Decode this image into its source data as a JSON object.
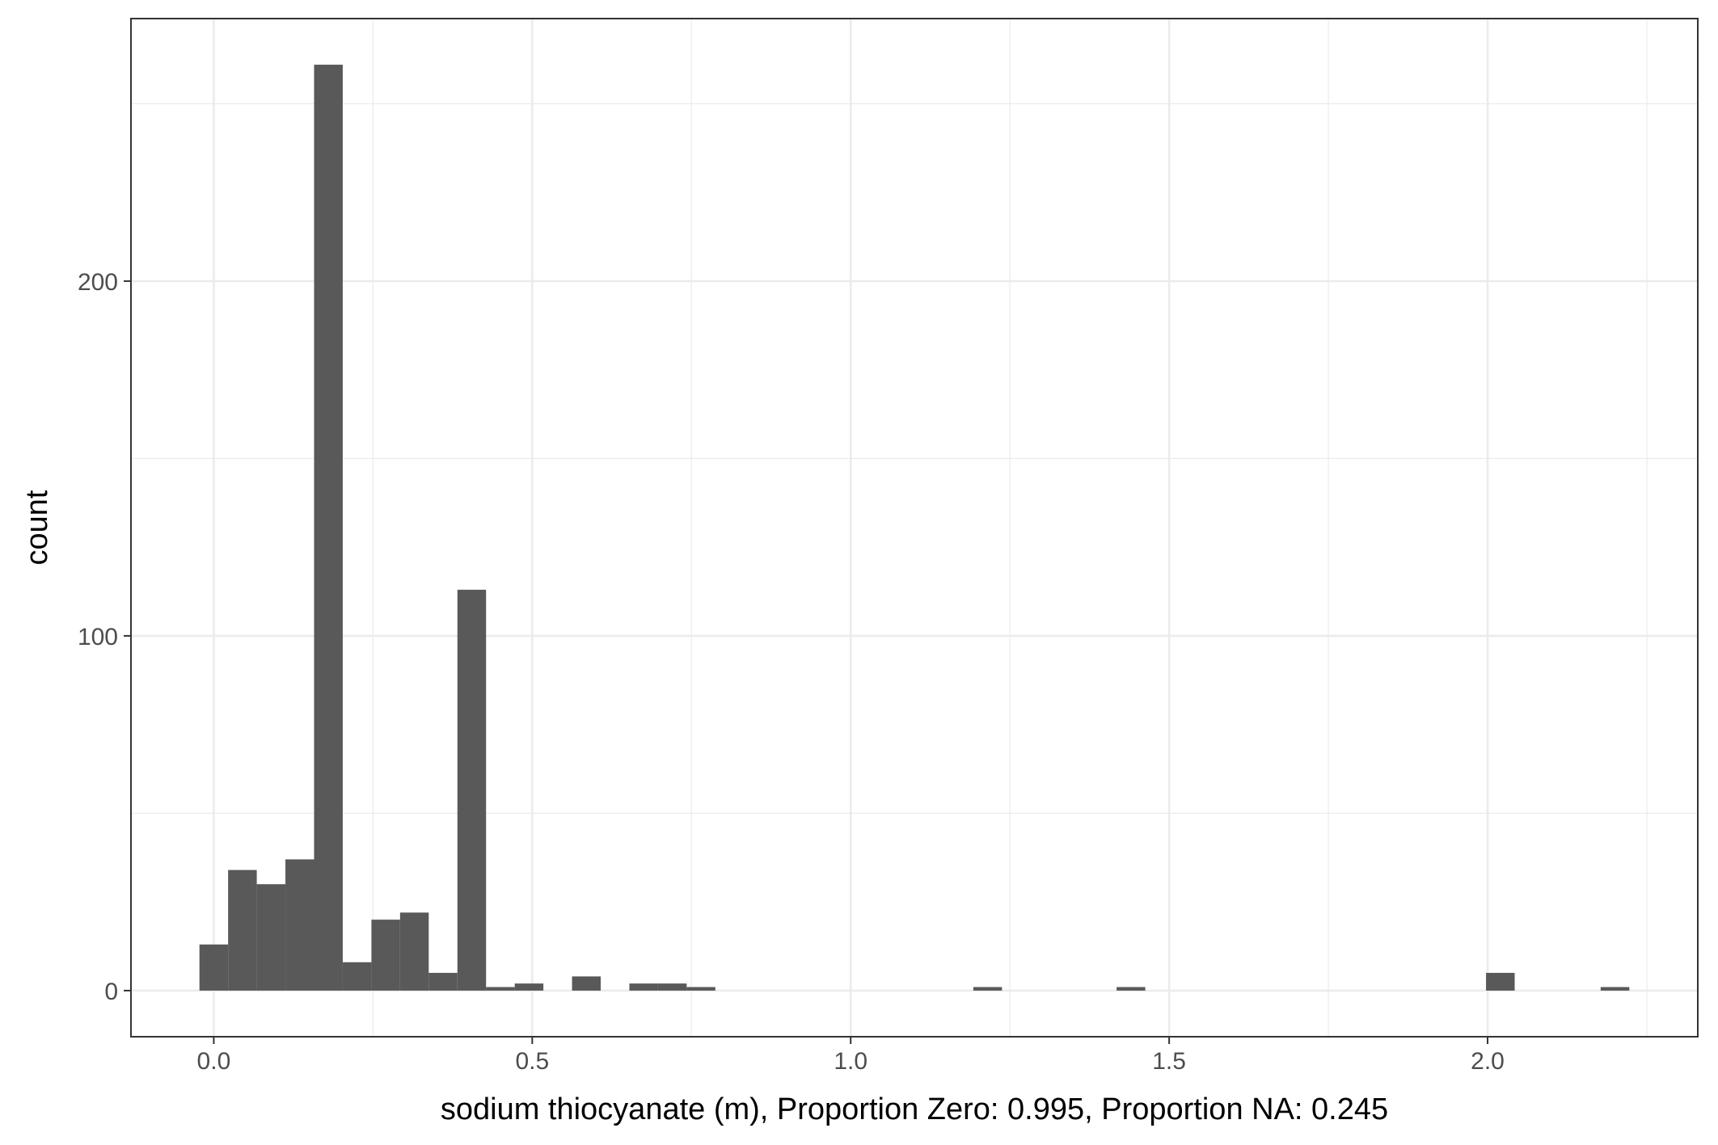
{
  "chart_data": {
    "type": "bar",
    "subtype": "histogram",
    "title": "",
    "xlabel": "sodium thiocyanate (m), Proportion Zero: 0.995, Proportion NA: 0.245",
    "ylabel": "count",
    "bin_width": 0.045,
    "bins": [
      {
        "x0": -0.0225,
        "x1": 0.0225,
        "count": 13
      },
      {
        "x0": 0.0225,
        "x1": 0.0675,
        "count": 34
      },
      {
        "x0": 0.0675,
        "x1": 0.1125,
        "count": 30
      },
      {
        "x0": 0.1125,
        "x1": 0.1575,
        "count": 37
      },
      {
        "x0": 0.1575,
        "x1": 0.2025,
        "count": 261
      },
      {
        "x0": 0.2025,
        "x1": 0.2475,
        "count": 8
      },
      {
        "x0": 0.2475,
        "x1": 0.2925,
        "count": 20
      },
      {
        "x0": 0.2925,
        "x1": 0.3375,
        "count": 22
      },
      {
        "x0": 0.3375,
        "x1": 0.3825,
        "count": 5
      },
      {
        "x0": 0.3825,
        "x1": 0.4275,
        "count": 113
      },
      {
        "x0": 0.4275,
        "x1": 0.4725,
        "count": 1
      },
      {
        "x0": 0.4725,
        "x1": 0.5175,
        "count": 2
      },
      {
        "x0": 0.5625,
        "x1": 0.6075,
        "count": 4
      },
      {
        "x0": 0.6525,
        "x1": 0.6975,
        "count": 2
      },
      {
        "x0": 0.6975,
        "x1": 0.7425,
        "count": 2
      },
      {
        "x0": 0.7425,
        "x1": 0.7875,
        "count": 1
      },
      {
        "x0": 1.1925,
        "x1": 1.2375,
        "count": 1
      },
      {
        "x0": 1.4175,
        "x1": 1.4625,
        "count": 1
      },
      {
        "x0": 1.9975,
        "x1": 2.0425,
        "count": 5
      },
      {
        "x0": 2.1775,
        "x1": 2.2225,
        "count": 1
      }
    ],
    "x_ticks": [
      0.0,
      0.5,
      1.0,
      1.5,
      2.0
    ],
    "x_tick_labels": [
      "0.0",
      "0.5",
      "1.0",
      "1.5",
      "2.0"
    ],
    "y_ticks": [
      0,
      100,
      200
    ],
    "y_tick_labels": [
      "0",
      "100",
      "200"
    ],
    "xlim": [
      -0.13,
      2.33
    ],
    "ylim": [
      -13,
      274
    ],
    "grid": true,
    "bar_color": "#595959",
    "grid_color": "#ebebeb",
    "panel_border_color": "#333333"
  }
}
